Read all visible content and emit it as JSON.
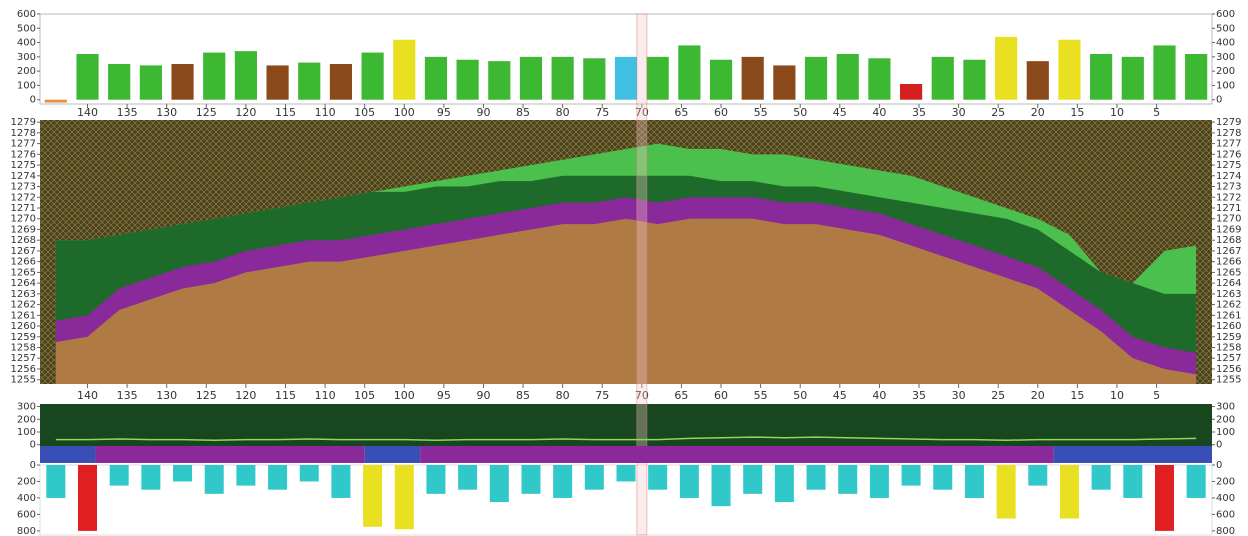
{
  "chart_data": [
    {
      "type": "bar",
      "x": [
        144,
        140,
        136,
        132,
        128,
        124,
        120,
        116,
        112,
        108,
        104,
        100,
        96,
        92,
        88,
        84,
        80,
        76,
        72,
        68,
        64,
        60,
        56,
        52,
        48,
        44,
        40,
        36,
        32,
        28,
        24,
        20,
        16,
        12,
        8,
        4,
        0
      ],
      "values": [
        -20,
        320,
        250,
        240,
        250,
        330,
        340,
        240,
        260,
        250,
        330,
        420,
        300,
        280,
        270,
        300,
        300,
        290,
        300,
        300,
        380,
        280,
        300,
        240,
        300,
        320,
        290,
        110,
        300,
        280,
        440,
        270,
        420,
        320,
        300,
        380,
        320
      ],
      "colors": [
        "#e89040",
        "#3cb832",
        "#3cb832",
        "#3cb832",
        "#8b4a1c",
        "#3cb832",
        "#3cb832",
        "#8b4a1c",
        "#3cb832",
        "#8b4a1c",
        "#3cb832",
        "#e8e020",
        "#3cb832",
        "#3cb832",
        "#3cb832",
        "#3cb832",
        "#3cb832",
        "#3cb832",
        "#40c0e0",
        "#3cb832",
        "#3cb832",
        "#3cb832",
        "#8b4a1c",
        "#8b4a1c",
        "#3cb832",
        "#3cb832",
        "#3cb832",
        "#d42020",
        "#3cb832",
        "#3cb832",
        "#e8e020",
        "#8b4a1c",
        "#e8e020",
        "#3cb832",
        "#3cb832",
        "#3cb832",
        "#3cb832"
      ],
      "xlim": [
        146,
        -2
      ],
      "xticks": [
        140,
        135,
        130,
        125,
        120,
        115,
        110,
        105,
        100,
        95,
        90,
        85,
        80,
        75,
        70,
        65,
        60,
        55,
        50,
        45,
        40,
        35,
        30,
        25,
        20,
        15,
        10,
        5
      ],
      "ylim": [
        -30,
        600
      ],
      "yticks": [
        0,
        100,
        200,
        300,
        400,
        500,
        600
      ]
    },
    {
      "type": "area",
      "x": [
        144,
        140,
        136,
        132,
        128,
        124,
        120,
        116,
        112,
        108,
        104,
        100,
        96,
        92,
        88,
        84,
        80,
        76,
        72,
        68,
        64,
        60,
        56,
        52,
        48,
        44,
        40,
        36,
        32,
        28,
        24,
        20,
        16,
        12,
        8,
        4,
        0
      ],
      "series": [
        {
          "color": "#4cc04c",
          "values": [
            1268,
            1268,
            1268.5,
            1269,
            1269.5,
            1270,
            1270.5,
            1271,
            1271.5,
            1272,
            1272.5,
            1273,
            1273.5,
            1274,
            1274.5,
            1275,
            1275.5,
            1276,
            1276.5,
            1277,
            1276.5,
            1276.5,
            1276,
            1276,
            1275.5,
            1275,
            1274.5,
            1274,
            1273,
            1272,
            1271,
            1270,
            1268.5,
            1265,
            1264,
            1267,
            1267.5
          ]
        },
        {
          "color": "#1e6a2a",
          "values": [
            1268,
            1268,
            1268.5,
            1269,
            1269.5,
            1270,
            1270.5,
            1271,
            1271.5,
            1272,
            1272.5,
            1272.5,
            1273,
            1273,
            1273.5,
            1273.5,
            1274,
            1274,
            1274,
            1274,
            1274,
            1273.5,
            1273.5,
            1273,
            1273,
            1272.5,
            1272,
            1271.5,
            1271,
            1270.5,
            1270,
            1269,
            1267,
            1265,
            1264,
            1263,
            1263
          ]
        },
        {
          "color": "#8a2a9a",
          "values": [
            1260.5,
            1261,
            1263.5,
            1264.5,
            1265.5,
            1266,
            1267,
            1267.5,
            1268,
            1268,
            1268.5,
            1269,
            1269.5,
            1270,
            1270.5,
            1271,
            1271.5,
            1271.5,
            1272,
            1271.5,
            1272,
            1272,
            1272,
            1271.5,
            1271.5,
            1271,
            1270.5,
            1269.5,
            1268.5,
            1267.5,
            1266.5,
            1265.5,
            1263.5,
            1261.5,
            1259,
            1258,
            1257.5
          ]
        },
        {
          "color": "#b07a45",
          "values": [
            1258.5,
            1259,
            1261.5,
            1262.5,
            1263.5,
            1264,
            1265,
            1265.5,
            1266,
            1266,
            1266.5,
            1267,
            1267.5,
            1268,
            1268.5,
            1269,
            1269.5,
            1269.5,
            1270,
            1269.5,
            1270,
            1270,
            1270,
            1269.5,
            1269.5,
            1269,
            1268.5,
            1267.5,
            1266.5,
            1265.5,
            1264.5,
            1263.5,
            1261.5,
            1259.5,
            1257,
            1256,
            1255.5
          ]
        }
      ],
      "highlight_x": 70,
      "xlim": [
        146,
        -2
      ],
      "xticks": [
        140,
        135,
        130,
        125,
        120,
        115,
        110,
        105,
        100,
        95,
        90,
        85,
        80,
        75,
        70,
        65,
        60,
        55,
        50,
        45,
        40,
        35,
        30,
        25,
        20,
        15,
        10,
        5
      ],
      "ylim": [
        1254.6,
        1279.2
      ],
      "yticks": [
        1255,
        1256,
        1257,
        1258,
        1259,
        1260,
        1261,
        1262,
        1263,
        1264,
        1265,
        1266,
        1267,
        1268,
        1269,
        1270,
        1271,
        1272,
        1273,
        1274,
        1275,
        1276,
        1277,
        1278,
        1279
      ]
    },
    {
      "type": "bar",
      "x": [
        144,
        140,
        136,
        132,
        128,
        124,
        120,
        116,
        112,
        108,
        104,
        100,
        96,
        92,
        88,
        84,
        80,
        76,
        72,
        68,
        64,
        60,
        56,
        52,
        48,
        44,
        40,
        36,
        32,
        28,
        24,
        20,
        16,
        12,
        8,
        4,
        0
      ],
      "series": [
        {
          "type": "line",
          "color": "#8cd860",
          "values": [
            40,
            40,
            45,
            40,
            40,
            35,
            40,
            40,
            45,
            40,
            40,
            40,
            35,
            40,
            40,
            40,
            45,
            40,
            40,
            40,
            50,
            55,
            60,
            55,
            60,
            55,
            50,
            45,
            40,
            40,
            35,
            40,
            40,
            40,
            40,
            45,
            50
          ]
        },
        {
          "axis": "y2",
          "values": [
            400,
            800,
            250,
            300,
            200,
            350,
            250,
            300,
            200,
            400,
            750,
            780,
            350,
            300,
            450,
            350,
            400,
            300,
            200,
            300,
            400,
            500,
            350,
            450,
            300,
            350,
            400,
            250,
            300,
            400,
            650,
            250,
            650,
            300,
            400,
            800,
            400
          ],
          "colors": [
            "#30c8c8",
            "#e02020",
            "#30c8c8",
            "#30c8c8",
            "#30c8c8",
            "#30c8c8",
            "#30c8c8",
            "#30c8c8",
            "#30c8c8",
            "#30c8c8",
            "#e8e020",
            "#e8e020",
            "#30c8c8",
            "#30c8c8",
            "#30c8c8",
            "#30c8c8",
            "#30c8c8",
            "#30c8c8",
            "#30c8c8",
            "#30c8c8",
            "#30c8c8",
            "#30c8c8",
            "#30c8c8",
            "#30c8c8",
            "#30c8c8",
            "#30c8c8",
            "#30c8c8",
            "#30c8c8",
            "#30c8c8",
            "#30c8c8",
            "#e8e020",
            "#30c8c8",
            "#e8e020",
            "#30c8c8",
            "#30c8c8",
            "#e02020",
            "#30c8c8"
          ]
        }
      ],
      "band": [
        {
          "from": 146,
          "to": 139,
          "color": "#3a4fb5"
        },
        {
          "from": 139,
          "to": 105,
          "color": "#8a2a9a"
        },
        {
          "from": 105,
          "to": 98,
          "color": "#3a4fb5"
        },
        {
          "from": 98,
          "to": 18,
          "color": "#8a2a9a"
        },
        {
          "from": 18,
          "to": -2,
          "color": "#3a4fb5"
        }
      ],
      "xlim": [
        146,
        -2
      ],
      "ylim": [
        -10,
        320
      ],
      "yticks": [
        0,
        100,
        200,
        300
      ],
      "y2lim": [
        0,
        850
      ],
      "y2ticks": [
        0,
        200,
        400,
        600,
        800
      ]
    }
  ]
}
